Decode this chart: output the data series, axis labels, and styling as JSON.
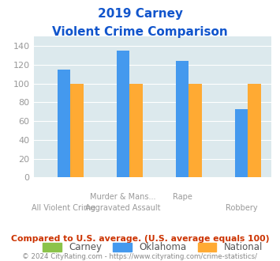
{
  "title_line1": "2019 Carney",
  "title_line2": "Violent Crime Comparison",
  "series": {
    "Carney": [
      0,
      0,
      0,
      0
    ],
    "Oklahoma": [
      115,
      135,
      124,
      73
    ],
    "National": [
      100,
      100,
      100,
      100
    ]
  },
  "bar_colors": {
    "Carney": "#8bc34a",
    "Oklahoma": "#4499ee",
    "National": "#ffaa33"
  },
  "row1_labels": [
    "",
    "Murder & Mans...",
    "Rape",
    ""
  ],
  "row2_labels": [
    "All Violent Crime",
    "Aggravated Assault",
    "",
    "Robbery"
  ],
  "ylim": [
    0,
    150
  ],
  "yticks": [
    0,
    20,
    40,
    60,
    80,
    100,
    120,
    140
  ],
  "bg_color": "#dce9ed",
  "title_color": "#1155cc",
  "tick_color": "#999999",
  "footer_text": "Compared to U.S. average. (U.S. average equals 100)",
  "copyright_text": "© 2024 CityRating.com - https://www.cityrating.com/crime-statistics/",
  "footer_color": "#cc3300",
  "copyright_color": "#888888"
}
